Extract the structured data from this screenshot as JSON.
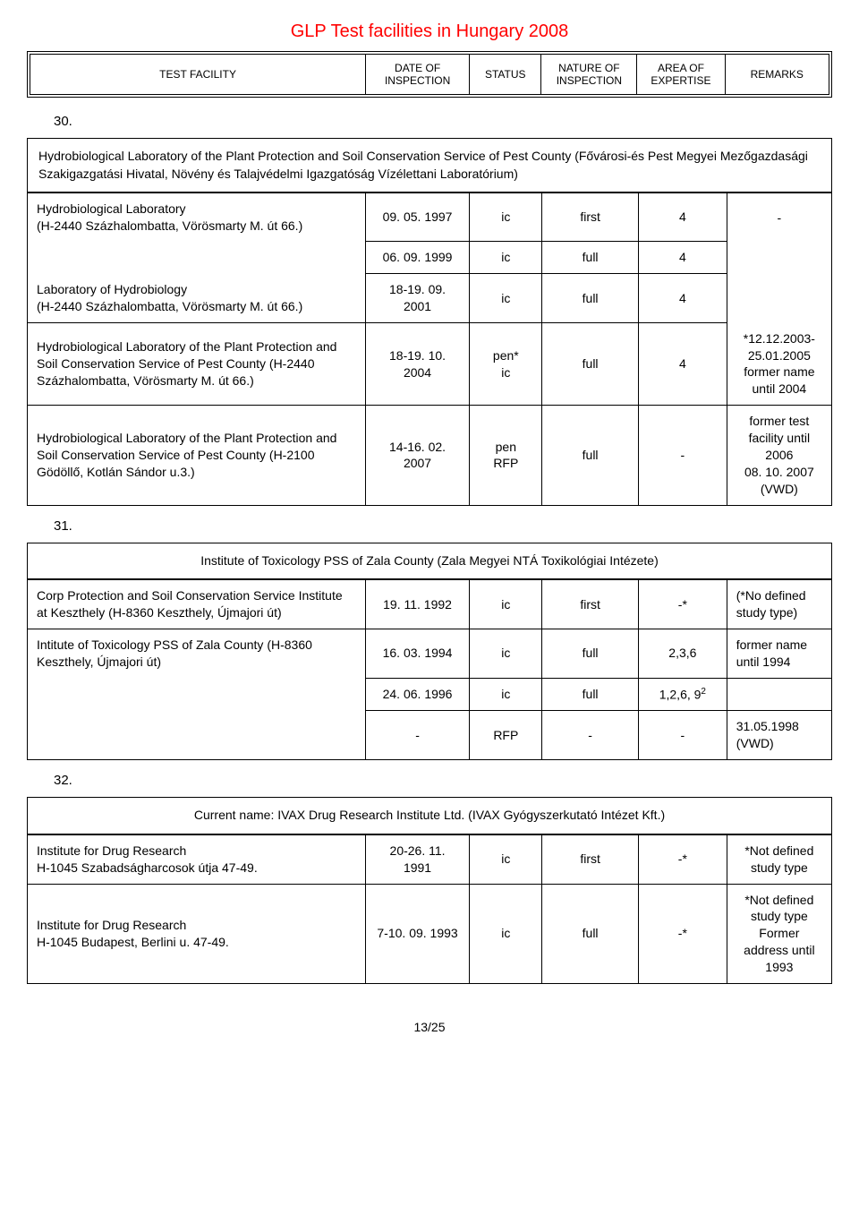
{
  "title": "GLP Test facilities in Hungary 2008",
  "header": {
    "cols": [
      "TEST FACILITY",
      "DATE OF INSPECTION",
      "STATUS",
      "NATURE OF INSPECTION",
      "AREA OF EXPERTISE",
      "REMARKS"
    ]
  },
  "section30": {
    "num": "30.",
    "desc": "Hydrobiological Laboratory of the Plant Protection and Soil Conservation Service of Pest County (Fővárosi-és Pest Megyei Mezőgazdasági Szakigazgatási Hivatal, Növény és Talajvédelmi Igazgatóság Vízélettani Laboratórium)",
    "rows": [
      {
        "name": "Hydrobiological Laboratory\n(H-2440 Százhalombatta, Vörösmarty M. út 66.)",
        "date": "09. 05. 1997",
        "status": "ic",
        "nature": "first",
        "area": "4",
        "remarks": "-"
      },
      {
        "name": "",
        "date": "06. 09. 1999",
        "status": "ic",
        "nature": "full",
        "area": "4",
        "remarks": ""
      },
      {
        "name": "Laboratory of Hydrobiology\n(H-2440 Százhalombatta, Vörösmarty M. út 66.)",
        "date": "18-19. 09. 2001",
        "status": "ic",
        "nature": "full",
        "area": "4",
        "remarks": ""
      },
      {
        "name": "Hydrobiological Laboratory of the Plant Protection and Soil Conservation Service of Pest County (H-2440 Százhalombatta, Vörösmarty M. út 66.)",
        "date": "18-19. 10. 2004",
        "status": "pen*\nic",
        "nature": "full",
        "area": "4",
        "remarks": "*12.12.2003-25.01.2005 former name until 2004"
      },
      {
        "name": "Hydrobiological Laboratory of the Plant Protection and Soil Conservation Service of Pest County (H-2100 Gödöllő, Kotlán Sándor u.3.)",
        "date": "14-16. 02. 2007",
        "status": "pen\nRFP",
        "nature": "full",
        "area": "-",
        "remarks": "former test facility until 2006\n08. 10. 2007 (VWD)"
      }
    ]
  },
  "section31": {
    "num": "31.",
    "desc": "Institute of Toxicology PSS of Zala County (Zala Megyei NTÁ Toxikológiai Intézete)",
    "rows": [
      {
        "name": "Corp Protection and Soil Conservation Service Institute at Keszthely (H-8360 Keszthely, Újmajori út)",
        "date": "19. 11. 1992",
        "status": "ic",
        "nature": "first",
        "area": "-*",
        "remarks": "(*No defined study type)"
      },
      {
        "name": "Intitute of Toxicology PSS of Zala County (H-8360 Keszthely, Újmajori út)",
        "date": "16. 03. 1994",
        "status": "ic",
        "nature": "full",
        "area": "2,3,6",
        "remarks": "former name until 1994"
      },
      {
        "name": "",
        "date": "24. 06. 1996",
        "status": "ic",
        "nature": "full",
        "area": "1,2,6, 9",
        "remarks": ""
      },
      {
        "name": "",
        "date": "-",
        "status": "RFP",
        "nature": "-",
        "area": "-",
        "remarks": "31.05.1998 (VWD)"
      }
    ],
    "sup": "2"
  },
  "section32": {
    "num": "32.",
    "desc": "Current name: IVAX Drug Research Institute Ltd. (IVAX Gyógyszerkutató Intézet Kft.)",
    "rows": [
      {
        "name": "Institute for Drug Research\nH-1045 Szabadságharcosok útja 47-49.",
        "date": "20-26. 11. 1991",
        "status": "ic",
        "nature": "first",
        "area": "-*",
        "remarks": "*Not defined study type"
      },
      {
        "name": "Institute for Drug Research\nH-1045 Budapest, Berlini u. 47-49.",
        "date": "7-10. 09. 1993",
        "status": "ic",
        "nature": "full",
        "area": "-*",
        "remarks": "*Not defined study type Former address until 1993"
      }
    ]
  },
  "pagenum": "13/25",
  "colwidths": {
    "name": "42%",
    "date": "13%",
    "status": "9%",
    "nature": "12%",
    "area": "11%",
    "remarks": "13%"
  }
}
